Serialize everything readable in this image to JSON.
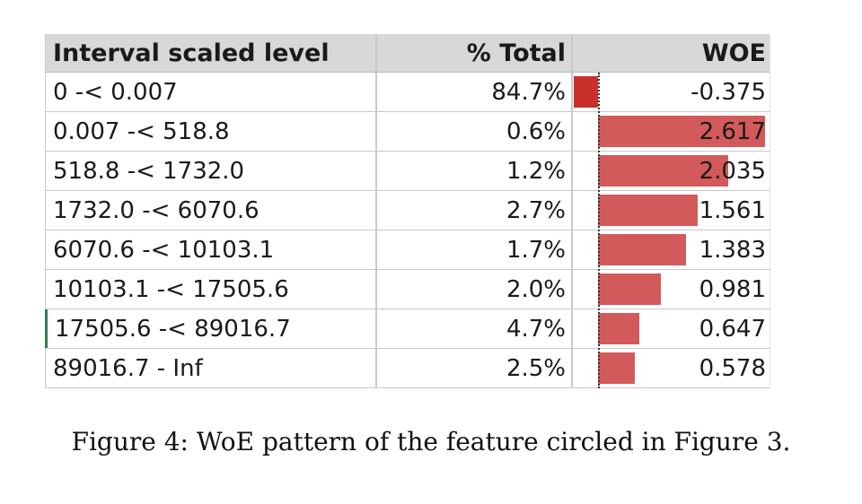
{
  "table": {
    "headers": [
      "Interval scaled level",
      "% Total",
      "WOE"
    ],
    "rows": [
      {
        "level": "0 -< 0.007",
        "pct": "84.7%",
        "woe": "-0.375",
        "woe_value": -0.375
      },
      {
        "level": "0.007 -< 518.8",
        "pct": "0.6%",
        "woe": "2.617",
        "woe_value": 2.617
      },
      {
        "level": "518.8 -< 1732.0",
        "pct": "1.2%",
        "woe": "2.035",
        "woe_value": 2.035
      },
      {
        "level": "1732.0 -< 6070.6",
        "pct": "2.7%",
        "woe": "1.561",
        "woe_value": 1.561
      },
      {
        "level": "6070.6 -< 10103.1",
        "pct": "1.7%",
        "woe": "1.383",
        "woe_value": 1.383
      },
      {
        "level": "10103.1 -< 17505.6",
        "pct": "2.0%",
        "woe": "0.981",
        "woe_value": 0.981
      },
      {
        "level": "17505.6 -< 89016.7",
        "pct": "4.7%",
        "woe": "0.647",
        "woe_value": 0.647
      },
      {
        "level": "89016.7 - Inf",
        "pct": "2.5%",
        "woe": "0.578",
        "woe_value": 0.578
      }
    ]
  },
  "colors": {
    "positive_bar": "#d35a5a",
    "negative_bar": "#c9302c",
    "header_bg": "#d8d8d8"
  },
  "caption": "Figure 4: WoE pattern of the feature circled in Figure 3."
}
